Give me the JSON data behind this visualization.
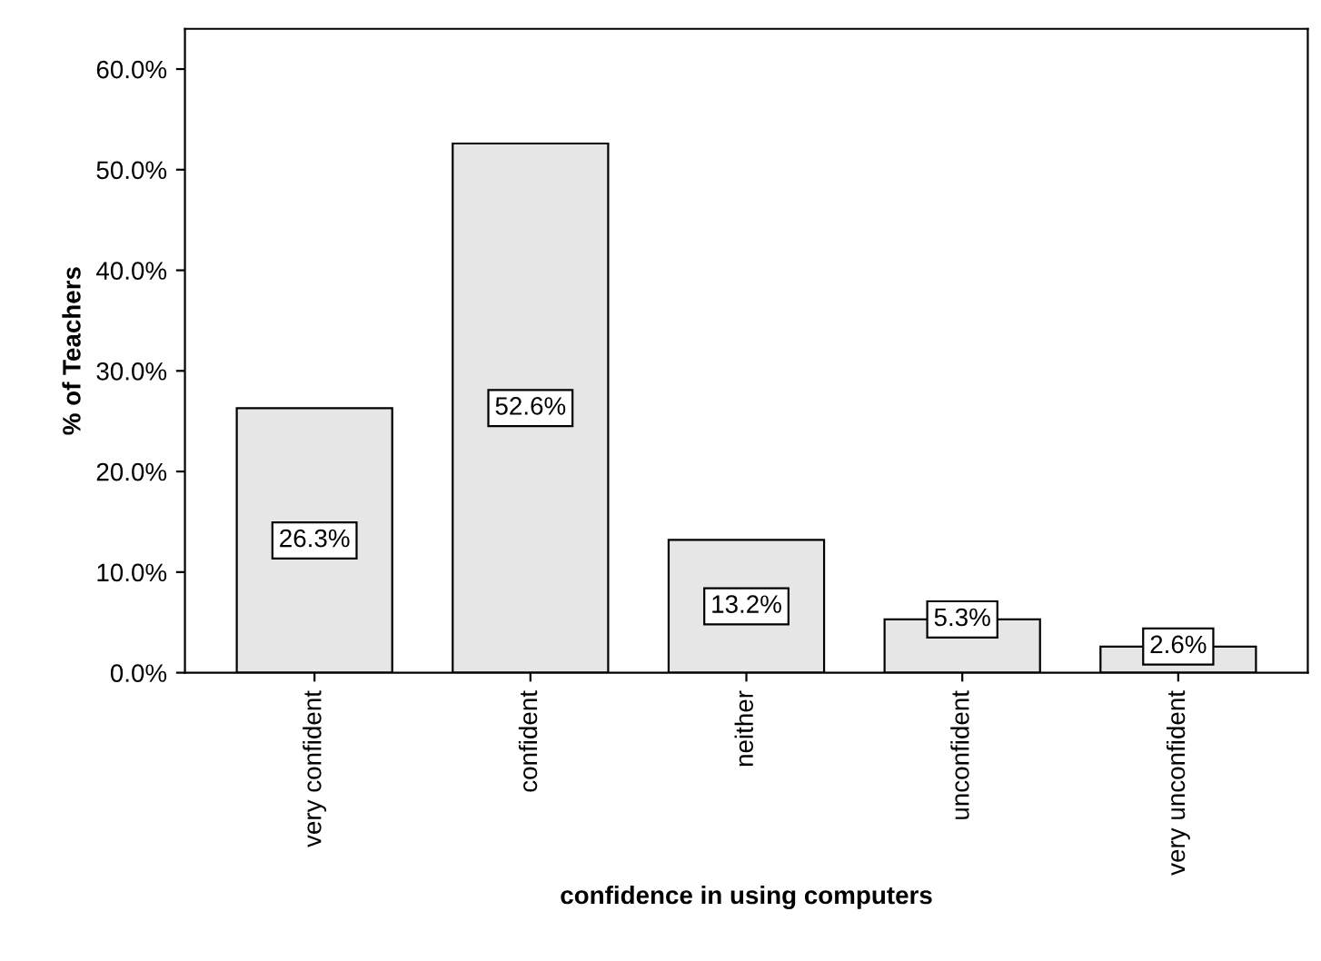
{
  "chart_data": {
    "type": "bar",
    "xlabel": "confidence in using computers",
    "ylabel": "% of Teachers",
    "categories": [
      "very confident",
      "confident",
      "neither",
      "unconfident",
      "very unconfident"
    ],
    "values": [
      26.3,
      52.6,
      13.2,
      5.3,
      2.6
    ],
    "color": "#e6e6e6",
    "value_labels": [
      "26.3%",
      "52.6%",
      "13.2%",
      "5.3%",
      "2.6%"
    ],
    "ylim": [
      0,
      64
    ],
    "yticks": [
      {
        "value": 0,
        "label": "0.0%"
      },
      {
        "value": 10,
        "label": "10.0%"
      },
      {
        "value": 20,
        "label": "20.0%"
      },
      {
        "value": 30,
        "label": "30.0%"
      },
      {
        "value": 40,
        "label": "40.0%"
      },
      {
        "value": 50,
        "label": "50.0%"
      },
      {
        "value": 60,
        "label": "60.0%"
      }
    ],
    "grid": false,
    "legend": false
  }
}
